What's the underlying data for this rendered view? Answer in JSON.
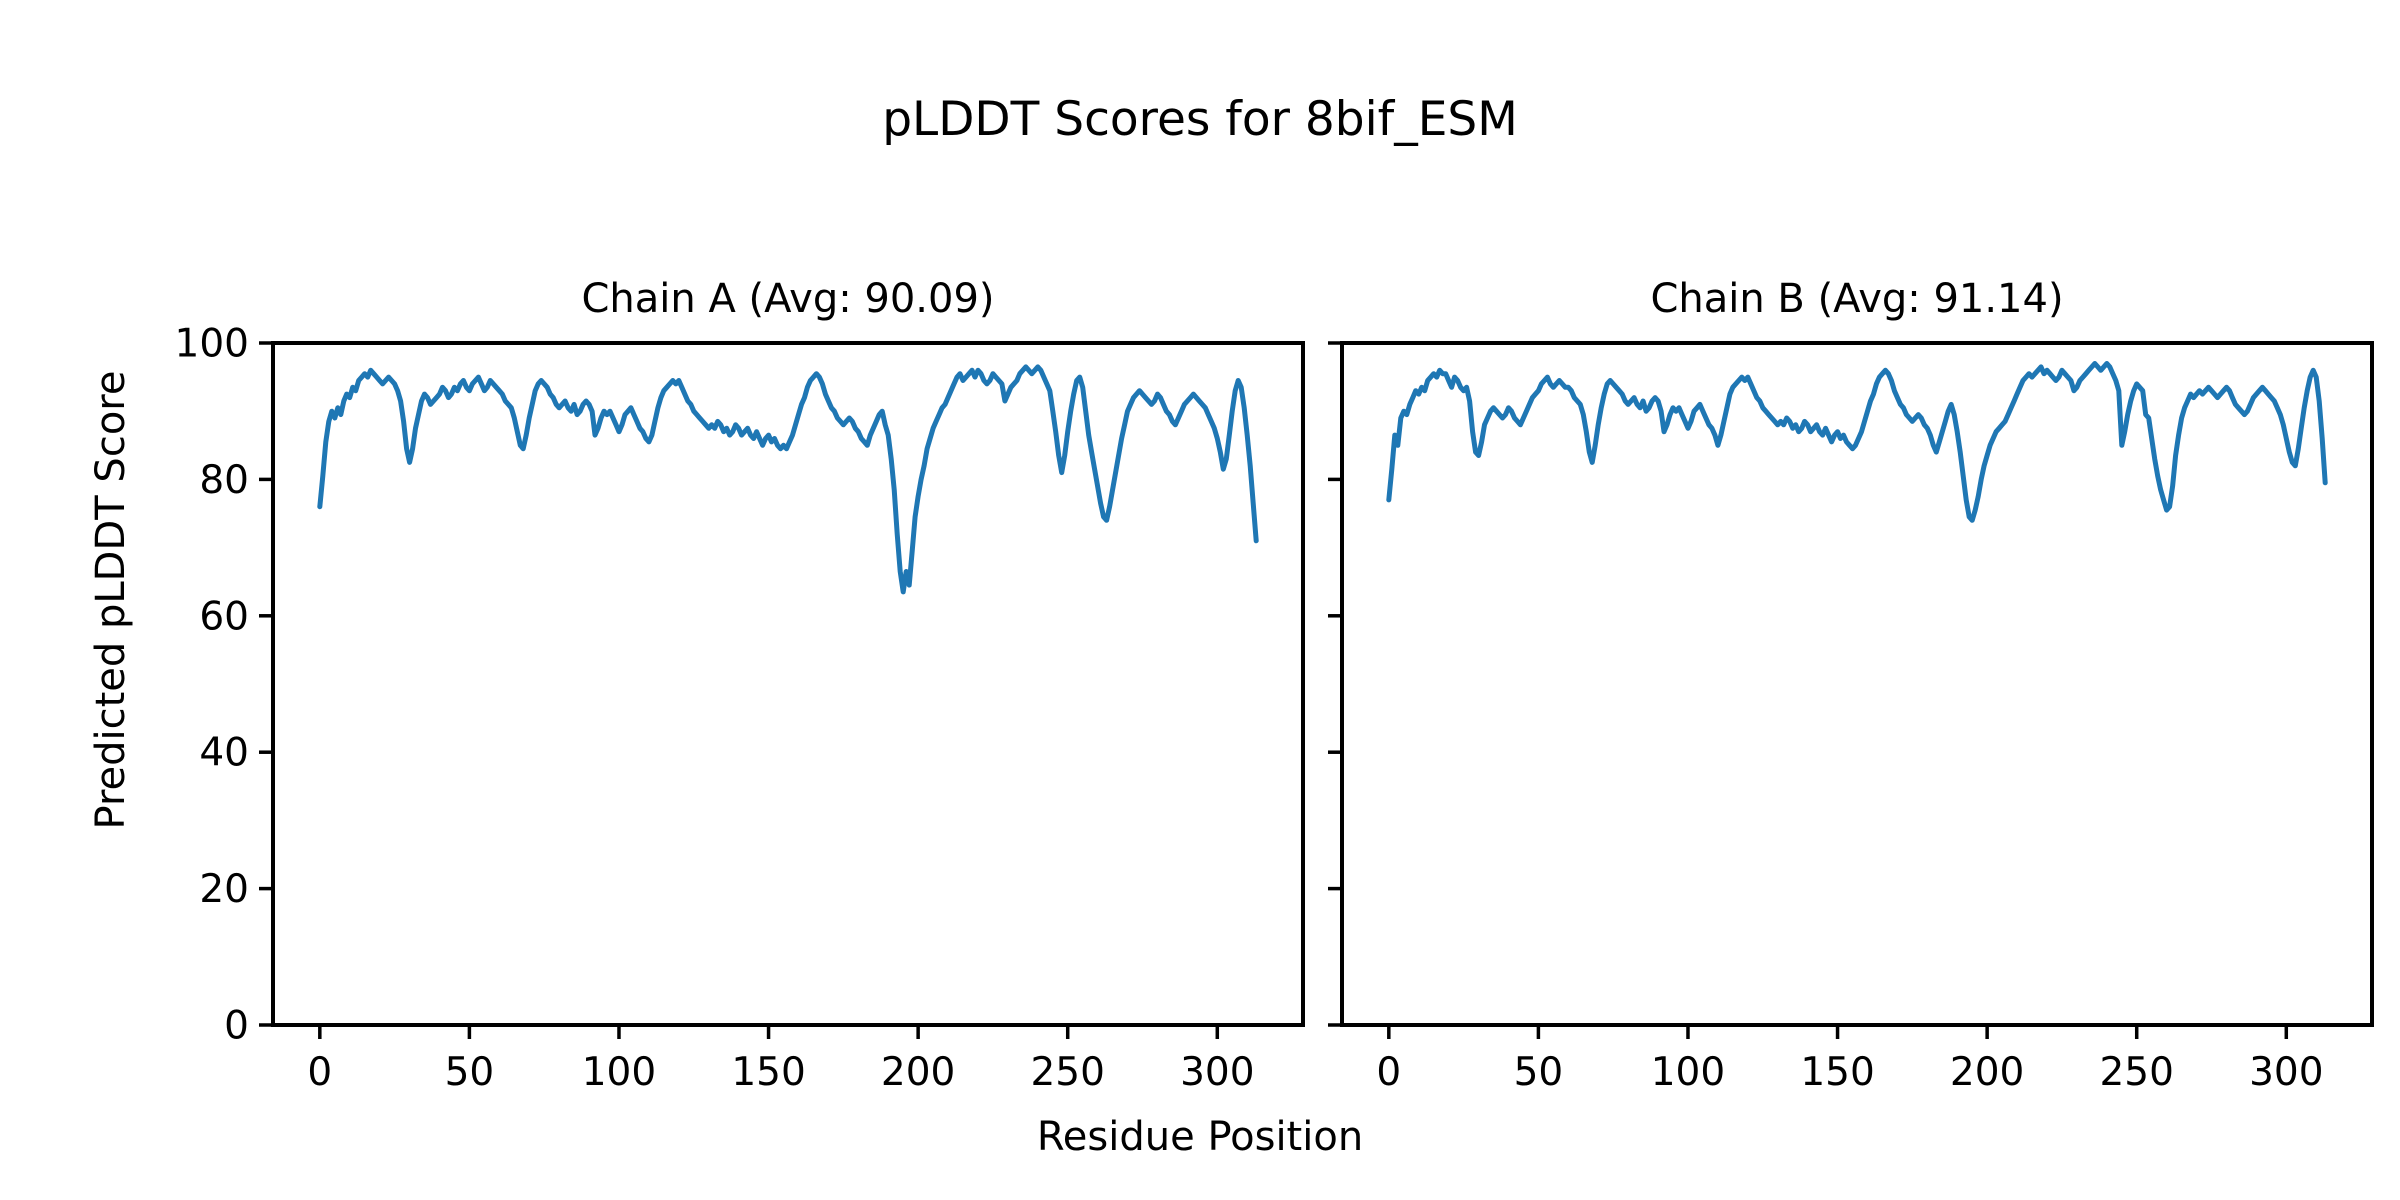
{
  "figure": {
    "title": "pLDDT Scores for 8bif_ESM",
    "xlabel": "Residue Position",
    "ylabel": "Predicted pLDDT Score",
    "background_color": "#ffffff",
    "text_color": "#000000",
    "spine_color": "#000000"
  },
  "chart_data": [
    {
      "type": "line",
      "chain": "A",
      "title": "Chain A (Avg: 90.09)",
      "avg_plddt": 90.09,
      "line_color": "#1f77b4",
      "xlabel_shared": "Residue Position",
      "ylabel_shared": "Predicted pLDDT Score",
      "xlim": [
        -15.65,
        328.65
      ],
      "ylim": [
        0,
        100
      ],
      "xticks": [
        0,
        50,
        100,
        150,
        200,
        250,
        300
      ],
      "yticks": [
        0,
        20,
        40,
        60,
        80,
        100
      ],
      "show_ytick_labels": true,
      "grid": false,
      "x_start": 0,
      "values": [
        76,
        80.5,
        85.5,
        88.5,
        90,
        89,
        90.5,
        89.5,
        91.5,
        92.5,
        92,
        93.5,
        93,
        94.5,
        95,
        95.5,
        95,
        96,
        95.5,
        95,
        94.5,
        94,
        94.5,
        95,
        94.5,
        94,
        93,
        91.5,
        88.5,
        84.5,
        82.5,
        84.5,
        87.5,
        89.5,
        91.5,
        92.5,
        92,
        91,
        91.5,
        92,
        92.5,
        93.5,
        93,
        92,
        92.5,
        93.5,
        93,
        94,
        94.5,
        93.5,
        93,
        94,
        94.5,
        95,
        94,
        93,
        93.5,
        94.5,
        94,
        93.5,
        93,
        92.5,
        91.5,
        91,
        90.5,
        89,
        87,
        85,
        84.5,
        86.5,
        89,
        91,
        93,
        94,
        94.5,
        94,
        93.5,
        92.5,
        92,
        91,
        90.5,
        91,
        91.5,
        90.5,
        90,
        91,
        89.5,
        90,
        91,
        91.5,
        91,
        90,
        86.5,
        87.5,
        89,
        90,
        89.5,
        90,
        89,
        88,
        87,
        88,
        89.5,
        90,
        90.5,
        89.5,
        88.5,
        87.5,
        87,
        86,
        85.5,
        86.5,
        88.5,
        90.5,
        92,
        93,
        93.5,
        94,
        94.5,
        94,
        94.5,
        93.5,
        92.5,
        91.5,
        91,
        90,
        89.5,
        89,
        88.5,
        88,
        87.5,
        88,
        87.5,
        88.5,
        88,
        87,
        87.5,
        86.5,
        87,
        88,
        87.5,
        86.5,
        87,
        87.5,
        86.5,
        86,
        87,
        86,
        85,
        86,
        86.5,
        85.5,
        86,
        85,
        84.5,
        85,
        84.5,
        85.5,
        86.5,
        88,
        89.5,
        91,
        92,
        93.5,
        94.5,
        95,
        95.5,
        95,
        94,
        92.5,
        91.5,
        90.5,
        90,
        89,
        88.5,
        88,
        88.5,
        89,
        88.5,
        87.5,
        87,
        86,
        85.5,
        85,
        86.5,
        87.5,
        88.5,
        89.5,
        90,
        88,
        86.5,
        83,
        78.5,
        72,
        66.5,
        63.5,
        66.5,
        64.5,
        69.5,
        74.5,
        77.5,
        80,
        82,
        84.5,
        86,
        87.5,
        88.5,
        89.5,
        90.5,
        91,
        92,
        93,
        94,
        95,
        95.5,
        94.5,
        95,
        95.5,
        96,
        95,
        96,
        95.5,
        94.5,
        94,
        94.5,
        95.5,
        95,
        94.5,
        94,
        91.5,
        92.5,
        93.5,
        94,
        94.5,
        95.5,
        96,
        96.5,
        96,
        95.5,
        96,
        96.5,
        96,
        95,
        94,
        93,
        90,
        87,
        83.5,
        81,
        83.5,
        87,
        90,
        92.5,
        94.5,
        95,
        93.5,
        90,
        86.5,
        84,
        81.5,
        79,
        76.5,
        74.5,
        74,
        76,
        78.5,
        81,
        83.5,
        86,
        88,
        90,
        91,
        92,
        92.5,
        93,
        92.5,
        92,
        91.5,
        91,
        91.5,
        92.5,
        92,
        91,
        90,
        89.5,
        88.5,
        88,
        89,
        90,
        91,
        91.5,
        92,
        92.5,
        92,
        91.5,
        91,
        90.5,
        89.5,
        88.5,
        87.5,
        86,
        84,
        81.5,
        83,
        86.5,
        90,
        93,
        94.5,
        93.5,
        90.5,
        86.5,
        82,
        76.5,
        71
      ]
    },
    {
      "type": "line",
      "chain": "B",
      "title": "Chain B (Avg: 91.14)",
      "avg_plddt": 91.14,
      "line_color": "#1f77b4",
      "xlabel_shared": "Residue Position",
      "ylabel_shared": "Predicted pLDDT Score",
      "xlim": [
        -15.65,
        328.65
      ],
      "ylim": [
        0,
        100
      ],
      "xticks": [
        0,
        50,
        100,
        150,
        200,
        250,
        300
      ],
      "yticks": [
        0,
        20,
        40,
        60,
        80,
        100
      ],
      "show_ytick_labels": false,
      "grid": false,
      "x_start": 0,
      "values": [
        77,
        81.5,
        86.5,
        85,
        89,
        90,
        89.5,
        91,
        92,
        93,
        92.5,
        93.5,
        93,
        94.5,
        95,
        95.5,
        95,
        96,
        95.5,
        95.5,
        94.5,
        93.5,
        95,
        94.5,
        93.5,
        93,
        93.5,
        91.5,
        87,
        84,
        83.5,
        85.5,
        88,
        89,
        90,
        90.5,
        90,
        89.5,
        89,
        89.5,
        90.5,
        90,
        89,
        88.5,
        88,
        89,
        90,
        91,
        92,
        92.5,
        93,
        94,
        94.5,
        95,
        94,
        93.5,
        94,
        94.5,
        94,
        93.5,
        93.5,
        93,
        92,
        91.5,
        91,
        89.5,
        87,
        84,
        82.5,
        85,
        88,
        90.5,
        92.5,
        94,
        94.5,
        94,
        93.5,
        93,
        92.5,
        91.5,
        91,
        91.5,
        92,
        91,
        90.5,
        91.5,
        90,
        90.5,
        91.5,
        92,
        91.5,
        90,
        87,
        88,
        89.5,
        90.5,
        90,
        90.5,
        89.5,
        88.5,
        87.5,
        88.5,
        90,
        90.5,
        91,
        90,
        89,
        88,
        87.5,
        86.5,
        85,
        86.5,
        88.5,
        90.5,
        92.5,
        93.5,
        94,
        94.5,
        95,
        94.5,
        95,
        94,
        93,
        92,
        91.5,
        90.5,
        90,
        89.5,
        89,
        88.5,
        88,
        88.5,
        88,
        89,
        88.5,
        87.5,
        88,
        87,
        87.5,
        88.5,
        88,
        87,
        87.5,
        88,
        87,
        86.5,
        87.5,
        86.5,
        85.5,
        86.5,
        87,
        86,
        86.5,
        85.5,
        85,
        84.5,
        85,
        86,
        87,
        88.5,
        90,
        91.5,
        92.5,
        94,
        95,
        95.5,
        96,
        95.5,
        94.5,
        93,
        92,
        91,
        90.5,
        89.5,
        89,
        88.5,
        89,
        89.5,
        89,
        88,
        87.5,
        86.5,
        85,
        84,
        85.5,
        87,
        88.5,
        90,
        91,
        89.5,
        87,
        84,
        80.5,
        77,
        74.5,
        74,
        75.5,
        77.5,
        80,
        82,
        83.5,
        85,
        86,
        87,
        87.5,
        88,
        88.5,
        89.5,
        90.5,
        91.5,
        92.5,
        93.5,
        94.5,
        95,
        95.5,
        95,
        95.5,
        96,
        96.5,
        95.5,
        96,
        95.5,
        95,
        94.5,
        95,
        96,
        95.5,
        95,
        94.5,
        93,
        93.5,
        94.5,
        95,
        95.5,
        96,
        96.5,
        97,
        96.5,
        96,
        96.5,
        97,
        96.5,
        95.5,
        94.5,
        93,
        85,
        87,
        89.5,
        91.5,
        93,
        94,
        93.5,
        93,
        89.5,
        89,
        86,
        83,
        80.5,
        78.5,
        77,
        75.5,
        76,
        79,
        83.5,
        86.5,
        89,
        90.5,
        91.5,
        92.5,
        92,
        92.5,
        93,
        92.5,
        93,
        93.5,
        93,
        92.5,
        92,
        92.5,
        93,
        93.5,
        93,
        92,
        91,
        90.5,
        90,
        89.5,
        90,
        91,
        92,
        92.5,
        93,
        93.5,
        93,
        92.5,
        92,
        91.5,
        90.5,
        89.5,
        88,
        86,
        84,
        82.5,
        82,
        84.5,
        87.5,
        90.5,
        93,
        95,
        96,
        95,
        91.5,
        86,
        79.5
      ]
    }
  ]
}
